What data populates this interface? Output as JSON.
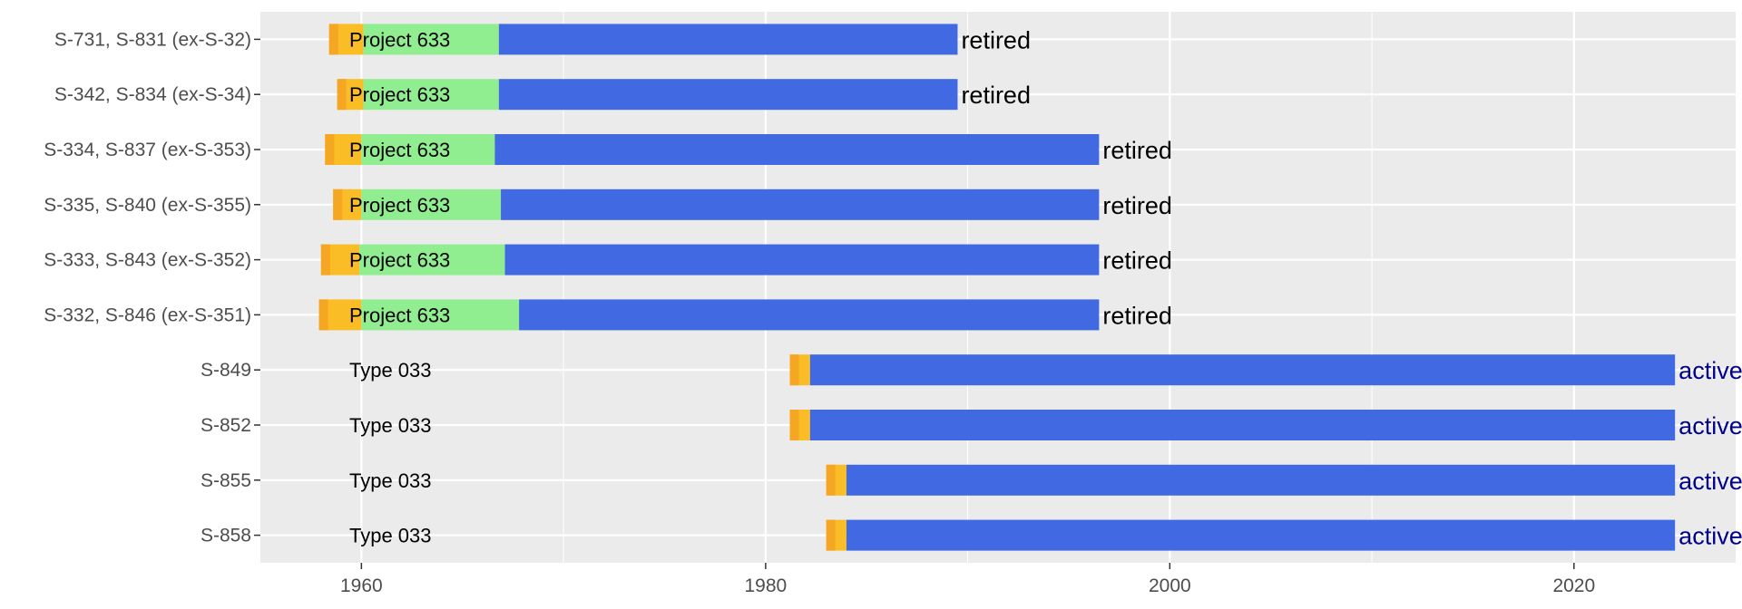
{
  "chart_data": {
    "type": "bar",
    "orientation": "horizontal-timeline",
    "title": "",
    "xlabel": "",
    "ylabel": "",
    "xlim": [
      1955,
      2028
    ],
    "x_ticks": [
      1960,
      1980,
      2000,
      2020
    ],
    "grid": true,
    "legend": "none",
    "colors": {
      "panel": "#ebebeb",
      "grid": "#ffffff",
      "construction": "#fbbd26",
      "construction_dark": "#f5a623",
      "project_phase": "#90ee90",
      "service": "#4169e1",
      "retired_text": "#000000",
      "active_text": "#00008b"
    },
    "series_order": [
      "construction",
      "project_phase",
      "service"
    ],
    "rows": [
      {
        "label": "S-731, S-831  (ex-S-32)",
        "class": "Project 633",
        "segments": [
          {
            "phase": "construction",
            "start": 1958.4,
            "end": 1960.1
          },
          {
            "phase": "project_phase",
            "start": 1960.1,
            "end": 1966.8
          },
          {
            "phase": "service",
            "start": 1966.8,
            "end": 1989.5
          }
        ],
        "status": "retired"
      },
      {
        "label": "S-342, S-834  (ex-S-34)",
        "class": "Project 633",
        "segments": [
          {
            "phase": "construction",
            "start": 1958.8,
            "end": 1960.1
          },
          {
            "phase": "project_phase",
            "start": 1960.1,
            "end": 1966.8
          },
          {
            "phase": "service",
            "start": 1966.8,
            "end": 1989.5
          }
        ],
        "status": "retired"
      },
      {
        "label": "S-334, S-837  (ex-S-353)",
        "class": "Project 633",
        "segments": [
          {
            "phase": "construction",
            "start": 1958.2,
            "end": 1960.0
          },
          {
            "phase": "project_phase",
            "start": 1960.0,
            "end": 1966.6
          },
          {
            "phase": "service",
            "start": 1966.6,
            "end": 1996.5
          }
        ],
        "status": "retired"
      },
      {
        "label": "S-335, S-840  (ex-S-355)",
        "class": "Project 633",
        "segments": [
          {
            "phase": "construction",
            "start": 1958.6,
            "end": 1960.0
          },
          {
            "phase": "project_phase",
            "start": 1960.0,
            "end": 1966.9
          },
          {
            "phase": "service",
            "start": 1966.9,
            "end": 1996.5
          }
        ],
        "status": "retired"
      },
      {
        "label": "S-333, S-843  (ex-S-352)",
        "class": "Project 633",
        "segments": [
          {
            "phase": "construction",
            "start": 1958.0,
            "end": 1959.9
          },
          {
            "phase": "project_phase",
            "start": 1959.9,
            "end": 1967.1
          },
          {
            "phase": "service",
            "start": 1967.1,
            "end": 1996.5
          }
        ],
        "status": "retired"
      },
      {
        "label": "S-332, S-846  (ex-S-351)",
        "class": "Project 633",
        "segments": [
          {
            "phase": "construction",
            "start": 1957.9,
            "end": 1960.0
          },
          {
            "phase": "project_phase",
            "start": 1960.0,
            "end": 1967.8
          },
          {
            "phase": "service",
            "start": 1967.8,
            "end": 1996.5
          }
        ],
        "status": "retired"
      },
      {
        "label": "S-849",
        "class": "Type 033",
        "segments": [
          {
            "phase": "construction",
            "start": 1981.2,
            "end": 1982.2
          },
          {
            "phase": "service",
            "start": 1982.2,
            "end": 2025.0
          }
        ],
        "status": "active"
      },
      {
        "label": "S-852",
        "class": "Type 033",
        "segments": [
          {
            "phase": "construction",
            "start": 1981.2,
            "end": 1982.2
          },
          {
            "phase": "service",
            "start": 1982.2,
            "end": 2025.0
          }
        ],
        "status": "active"
      },
      {
        "label": "S-855",
        "class": "Type 033",
        "segments": [
          {
            "phase": "construction",
            "start": 1983.0,
            "end": 1984.0
          },
          {
            "phase": "service",
            "start": 1984.0,
            "end": 2025.0
          }
        ],
        "status": "active"
      },
      {
        "label": "S-858",
        "class": "Type 033",
        "segments": [
          {
            "phase": "construction",
            "start": 1983.0,
            "end": 1984.0
          },
          {
            "phase": "service",
            "start": 1984.0,
            "end": 2025.0
          }
        ],
        "status": "active"
      }
    ]
  }
}
